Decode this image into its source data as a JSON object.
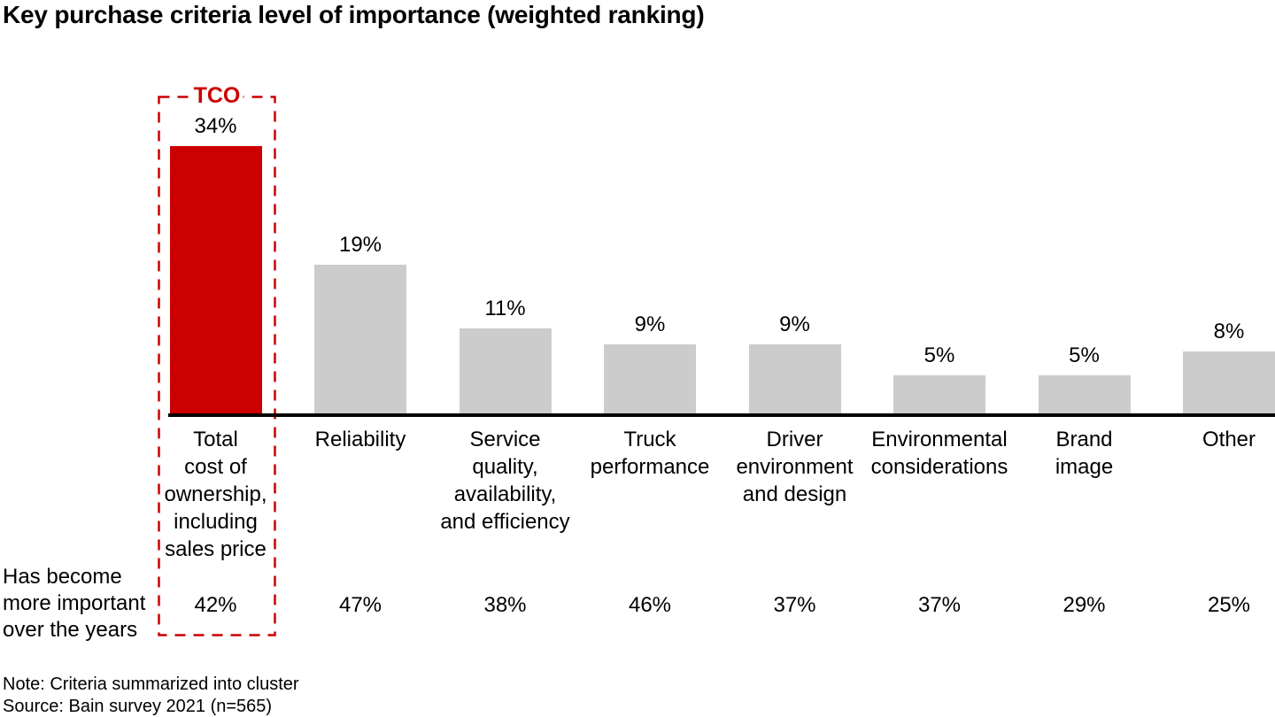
{
  "title": "Key purchase criteria level of importance (weighted ranking)",
  "tco": {
    "label": "TCO"
  },
  "row_label": "Has become\nmore important\nover the years",
  "notes": {
    "note": "Note: Criteria summarized into cluster",
    "source": "Source: Bain survey 2021 (n=565)"
  },
  "colors": {
    "highlight": "#cc0000",
    "bar": "#cccccc",
    "axis": "#000000",
    "text": "#000000"
  },
  "columns": [
    {
      "label": "Total\ncost of\nownership,\nincluding\nsales price",
      "importance": "34%",
      "more_important": "42%"
    },
    {
      "label": "Reliability",
      "importance": "19%",
      "more_important": "47%"
    },
    {
      "label": "Service\nquality,\navailability,\nand efficiency",
      "importance": "11%",
      "more_important": "38%"
    },
    {
      "label": "Truck\nperformance",
      "importance": "9%",
      "more_important": "46%"
    },
    {
      "label": "Driver\nenvironment\nand design",
      "importance": "9%",
      "more_important": "37%"
    },
    {
      "label": "Environmental\nconsiderations",
      "importance": "5%",
      "more_important": "37%"
    },
    {
      "label": "Brand\nimage",
      "importance": "5%",
      "more_important": "29%"
    },
    {
      "label": "Other",
      "importance": "8%",
      "more_important": "25%"
    }
  ],
  "chart_data": {
    "type": "bar",
    "title": "Key purchase criteria level of importance (weighted ranking)",
    "categories": [
      "Total cost of ownership, including sales price",
      "Reliability",
      "Service quality, availability, and efficiency",
      "Truck performance",
      "Driver environment and design",
      "Environmental considerations",
      "Brand image",
      "Other"
    ],
    "series": [
      {
        "name": "Level of importance (weighted ranking)",
        "values": [
          34,
          19,
          11,
          9,
          9,
          5,
          5,
          8
        ],
        "unit": "%"
      },
      {
        "name": "Has become more important over the years",
        "values": [
          42,
          47,
          38,
          46,
          37,
          37,
          29,
          25
        ],
        "unit": "%"
      }
    ],
    "highlight": {
      "category_index": 0,
      "label": "TCO",
      "color": "#cc0000"
    },
    "bar_color": "#cccccc",
    "xlabel": "",
    "ylabel": "",
    "ylim": [
      0,
      40
    ],
    "grid": false,
    "legend": "none",
    "annotations": [
      "TCO dashed callout box around first bar"
    ],
    "notes": [
      "Note: Criteria summarized into cluster",
      "Source: Bain survey 2021 (n=565)"
    ]
  }
}
